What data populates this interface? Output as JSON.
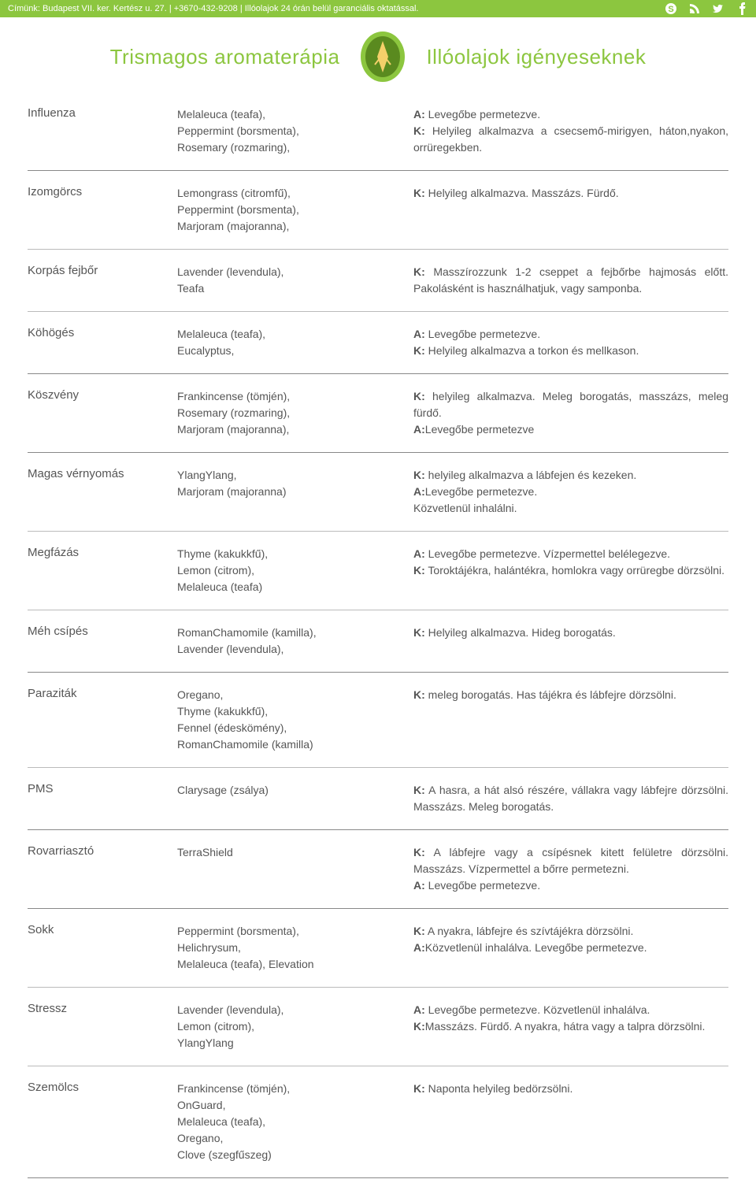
{
  "topbar": {
    "text": "Címünk: Budapest VII. ker. Kertész u. 27. | +3670-432-9208 | Illóolajok 24 órán belül garanciális oktatással."
  },
  "header": {
    "left": "Trismagos aromaterápia",
    "right": "Illóolajok igényeseknek"
  },
  "groups": [
    {
      "rows": [
        {
          "condition": "Influenza",
          "oils": "Melaleuca (teafa),\nPeppermint (borsmenta),\nRosemary (rozmaring),",
          "usage": "<b>A:</b> Levegőbe permetezve.\n<b>K:</b> Helyileg alkalmazva a csecsemő-mirigyen, háton,nyakon, orrüregekben."
        }
      ]
    },
    {
      "rows": [
        {
          "condition": "Izomgörcs",
          "oils": "Lemongrass (citromfű),\nPeppermint (borsmenta),\nMarjoram (majoranna),",
          "usage": "<b>K:</b> Helyileg alkalmazva. Masszázs. Fürdő."
        },
        {
          "condition": "Korpás fejbőr",
          "oils": "Lavender (levendula),\nTeafa",
          "usage": "<b>K:</b> Masszírozzunk 1-2 cseppet a fejbőrbe hajmosás előtt. Pakolásként is használhatjuk, vagy samponba."
        },
        {
          "condition": "Köhögés",
          "oils": "Melaleuca (teafa),\nEucalyptus,",
          "usage": "<b>A:</b> Levegőbe permetezve.\n<b>K:</b> Helyileg alkalmazva a torkon és mellkason."
        }
      ]
    },
    {
      "rows": [
        {
          "condition": "Köszvény",
          "oils": "Frankincense (tömjén),\nRosemary (rozmaring),\nMarjoram (majoranna),",
          "usage": "<b>K:</b> helyileg alkalmazva. Meleg borogatás, masszázs, meleg fürdő.\n<b>A:</b>Levegőbe permetezve"
        }
      ]
    },
    {
      "rows": [
        {
          "condition": "Magas vérnyomás",
          "oils": "YlangYlang,\nMarjoram (majoranna)",
          "usage": "<b>K:</b> helyileg alkalmazva a lábfejen és kezeken.\n<b>A:</b>Levegőbe permetezve.\nKözvetlenül inhalálni."
        },
        {
          "condition": "Megfázás",
          "oils": "Thyme (kakukkfű),\nLemon (citrom),\nMelaleuca (teafa)",
          "usage": "<b>A:</b> Levegőbe permetezve. Vízpermettel belélegezve.\n<b>K:</b> Toroktájékra, halántékra, homlokra vagy orrüregbe dörzsölni."
        },
        {
          "condition": "Méh csípés",
          "oils": "RomanChamomile (kamilla),\nLavender (levendula),",
          "usage": "<b>K:</b> Helyileg alkalmazva. Hideg borogatás."
        }
      ]
    },
    {
      "rows": [
        {
          "condition": "Paraziták",
          "oils": "Oregano,\nThyme (kakukkfű),\nFennel (édeskömény),\nRomanChamomile (kamilla)",
          "usage": "<b>K:</b> meleg borogatás. Has tájékra és lábfejre dörzsölni."
        },
        {
          "condition": "PMS",
          "oils": "Clarysage (zsálya)",
          "usage": "<b>K:</b> A hasra, a hát alsó részére, vállakra vagy lábfejre dörzsölni. Masszázs. Meleg borogatás."
        }
      ]
    },
    {
      "rows": [
        {
          "condition": "Rovarriasztó",
          "oils": "TerraShield",
          "usage": "<b>K:</b> A lábfejre vagy a csípésnek kitett felületre dörzsölni. Masszázs. Vízpermettel a bőrre permetezni.\n<b>A:</b> Levegőbe permetezve."
        }
      ]
    },
    {
      "rows": [
        {
          "condition": "Sokk",
          "oils": "Peppermint (borsmenta),\nHelichrysum,\nMelaleuca (teafa), Elevation",
          "usage": "<b>K:</b> A nyakra, lábfejre és szívtájékra dörzsölni.\n<b>A:</b>Közvetlenül inhalálva. Levegőbe permetezve."
        },
        {
          "condition": "Stressz",
          "oils": "Lavender (levendula),\nLemon (citrom),\nYlangYlang",
          "usage": "<b>A:</b> Levegőbe permetezve. Közvetlenül inhalálva.\n<b>K:</b>Masszázs. Fürdő. A nyakra, hátra vagy a talpra dörzsölni."
        },
        {
          "condition": "Szemölcs",
          "oils": "Frankincense (tömjén),\nOnGuard,\nMelaleuca (teafa),\nOregano,\nClove (szegfűszeg)",
          "usage": "<b>K:</b> Naponta helyileg bedörzsölni."
        }
      ]
    }
  ]
}
